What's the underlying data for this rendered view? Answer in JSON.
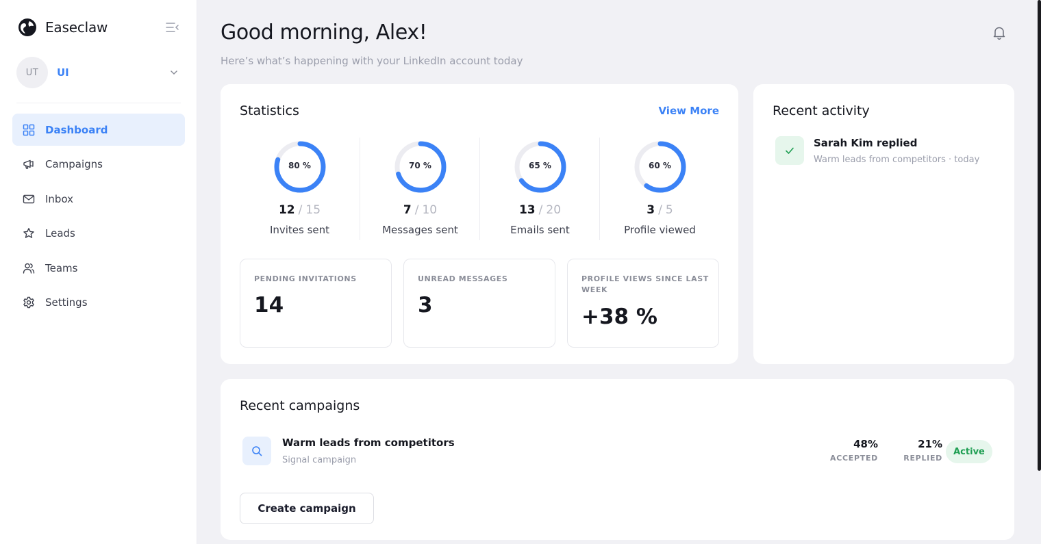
{
  "brand": {
    "name": "Easeclaw"
  },
  "account": {
    "initials": "UT",
    "name": "UI"
  },
  "nav": [
    {
      "label": "Dashboard",
      "icon": "dashboard-icon",
      "active": true
    },
    {
      "label": "Campaigns",
      "icon": "megaphone-icon"
    },
    {
      "label": "Inbox",
      "icon": "mail-icon"
    },
    {
      "label": "Leads",
      "icon": "star-icon"
    },
    {
      "label": "Teams",
      "icon": "users-icon"
    },
    {
      "label": "Settings",
      "icon": "gear-icon"
    }
  ],
  "header": {
    "greeting": "Good morning, Alex!",
    "subtitle": "Here’s what’s happening with your LinkedIn account today"
  },
  "statistics": {
    "title": "Statistics",
    "view_more": "View More",
    "rings": [
      {
        "percent_label": "80 %",
        "percent": 80,
        "current": "12",
        "total": "15",
        "label": "Invites sent"
      },
      {
        "percent_label": "70 %",
        "percent": 70,
        "current": "7",
        "total": "10",
        "label": "Messages sent"
      },
      {
        "percent_label": "65 %",
        "percent": 65,
        "current": "13",
        "total": "20",
        "label": "Emails sent"
      },
      {
        "percent_label": "60 %",
        "percent": 60,
        "current": "3",
        "total": "5",
        "label": "Profile viewed"
      }
    ],
    "separator": "/",
    "cards": [
      {
        "label": "PENDING INVITATIONS",
        "value": "14"
      },
      {
        "label": "UNREAD MESSAGES",
        "value": "3"
      },
      {
        "label": "PROFILE VIEWS SINCE LAST WEEK",
        "value": "+38 %"
      }
    ]
  },
  "activity": {
    "title": "Recent activity",
    "items": [
      {
        "title": "Sarah Kim replied",
        "subtitle": "Warm leads from competitors · today"
      }
    ]
  },
  "campaigns": {
    "title": "Recent campaigns",
    "items": [
      {
        "name": "Warm leads from competitors",
        "type": "Signal campaign",
        "accepted": "48%",
        "accepted_label": "ACCEPTED",
        "replied": "21%",
        "replied_label": "REPLIED",
        "status": "Active"
      }
    ],
    "create_label": "Create campaign"
  },
  "colors": {
    "accent": "#3b82f6",
    "ring_track": "#ececf1",
    "success": "#1e9e52",
    "success_bg": "#e6f6ec"
  }
}
